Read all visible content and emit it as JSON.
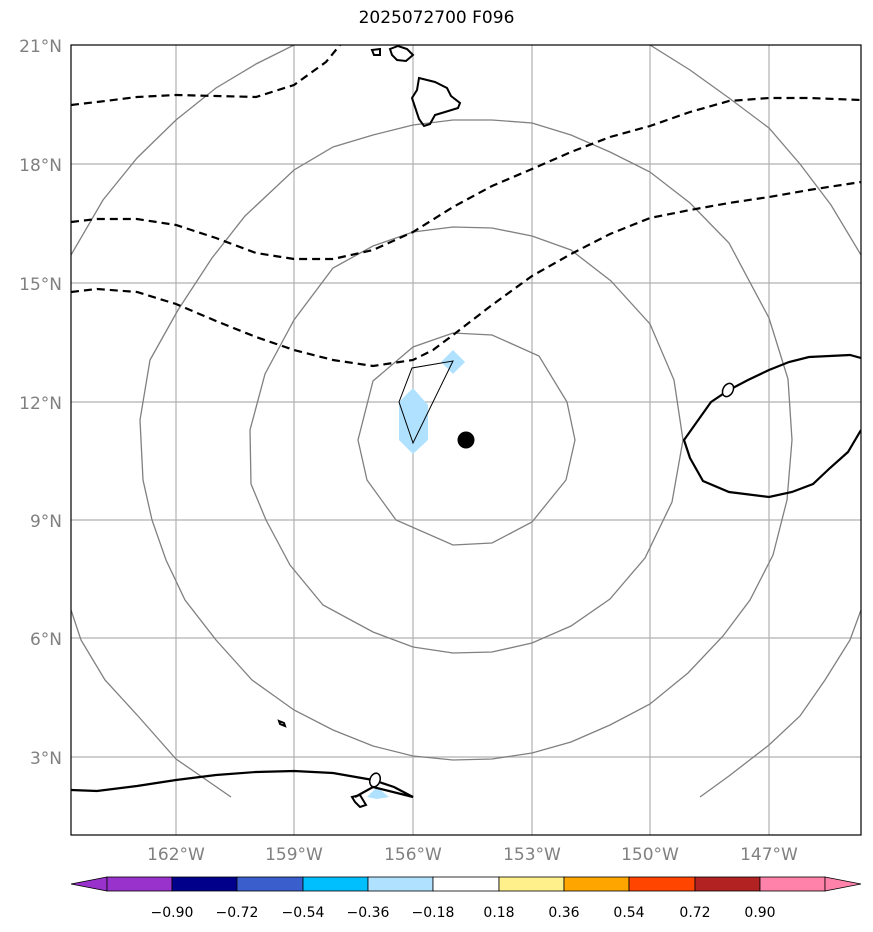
{
  "title": "2025072700 F096",
  "map": {
    "lat_labels": [
      "21°N",
      "18°N",
      "15°N",
      "12°N",
      "9°N",
      "6°N",
      "3°N"
    ],
    "lon_labels": [
      "162°W",
      "159°W",
      "156°W",
      "153°W",
      "150°W",
      "147°W"
    ],
    "contour_labels": [
      {
        "text": "0",
        "id": "east"
      },
      {
        "text": "0",
        "id": "south"
      }
    ],
    "grid_color": "#b0b0b0",
    "range_ring_color": "#808080",
    "coast_color": "#000000",
    "center_marker": {
      "symbol": "filled-circle",
      "color": "#000000",
      "lat": 11.0,
      "lon": -154.7
    }
  },
  "colorbar": {
    "colors": [
      "#9932cc",
      "#00008b",
      "#3a5fcd",
      "#00bfff",
      "#b0e2ff",
      "#ffffff",
      "#fff08c",
      "#ffa500",
      "#ff4500",
      "#b22222",
      "#ff82ab"
    ],
    "tick_labels": [
      "−0.90",
      "−0.72",
      "−0.54",
      "−0.36",
      "−0.18",
      "0.18",
      "0.36",
      "0.54",
      "0.72",
      "0.90"
    ],
    "shading_color": "#b0e2ff"
  }
}
